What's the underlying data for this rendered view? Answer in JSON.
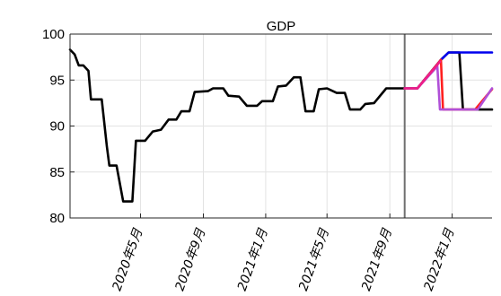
{
  "chart_data": {
    "type": "line",
    "title": "GDP",
    "xlabel": "",
    "ylabel": "",
    "ylim": [
      80,
      100
    ],
    "yticks": [
      80,
      85,
      90,
      95,
      100
    ],
    "xlim": [
      "2019-12-15",
      "2022-03-20"
    ],
    "xticks": [
      {
        "date": "2020-05-01",
        "label": "2020年5月"
      },
      {
        "date": "2020-09-01",
        "label": "2020年9月"
      },
      {
        "date": "2021-01-01",
        "label": "2021年1月"
      },
      {
        "date": "2021-05-01",
        "label": "2021年5月"
      },
      {
        "date": "2021-09-01",
        "label": "2021年9月"
      },
      {
        "date": "2022-01-01",
        "label": "2022年1月"
      }
    ],
    "grid": true,
    "vertical_marker": {
      "date": "2021-09-30",
      "color": "#707070"
    },
    "series": [
      {
        "color": "#000000",
        "points": [
          [
            "2019-12-15",
            98.3
          ],
          [
            "2019-12-24",
            97.8
          ],
          [
            "2020-01-01",
            96.6
          ],
          [
            "2020-01-10",
            96.6
          ],
          [
            "2020-01-20",
            96.0
          ],
          [
            "2020-01-25",
            92.9
          ],
          [
            "2020-02-05",
            92.9
          ],
          [
            "2020-02-15",
            92.9
          ],
          [
            "2020-02-25",
            87.8
          ],
          [
            "2020-03-01",
            85.7
          ],
          [
            "2020-03-15",
            85.7
          ],
          [
            "2020-03-28",
            81.8
          ],
          [
            "2020-04-15",
            81.8
          ],
          [
            "2020-04-22",
            88.4
          ],
          [
            "2020-05-10",
            88.4
          ],
          [
            "2020-05-25",
            89.4
          ],
          [
            "2020-06-10",
            89.6
          ],
          [
            "2020-06-25",
            90.7
          ],
          [
            "2020-07-10",
            90.7
          ],
          [
            "2020-07-20",
            91.6
          ],
          [
            "2020-08-05",
            91.6
          ],
          [
            "2020-08-15",
            93.7
          ],
          [
            "2020-09-10",
            93.8
          ],
          [
            "2020-09-20",
            94.1
          ],
          [
            "2020-10-10",
            94.1
          ],
          [
            "2020-10-20",
            93.3
          ],
          [
            "2020-11-10",
            93.2
          ],
          [
            "2020-11-25",
            92.2
          ],
          [
            "2020-12-15",
            92.2
          ],
          [
            "2020-12-25",
            92.7
          ],
          [
            "2021-01-15",
            92.7
          ],
          [
            "2021-01-25",
            94.3
          ],
          [
            "2021-02-10",
            94.4
          ],
          [
            "2021-02-25",
            95.3
          ],
          [
            "2021-03-10",
            95.3
          ],
          [
            "2021-03-20",
            91.6
          ],
          [
            "2021-04-05",
            91.6
          ],
          [
            "2021-04-15",
            94.0
          ],
          [
            "2021-05-01",
            94.1
          ],
          [
            "2021-05-20",
            93.6
          ],
          [
            "2021-06-05",
            93.6
          ],
          [
            "2021-06-15",
            91.8
          ],
          [
            "2021-07-05",
            91.8
          ],
          [
            "2021-07-15",
            92.4
          ],
          [
            "2021-08-01",
            92.5
          ],
          [
            "2021-08-25",
            94.1
          ],
          [
            "2021-09-30",
            94.1
          ]
        ]
      },
      {
        "color": "#000000",
        "points": [
          [
            "2021-09-30",
            94.1
          ],
          [
            "2021-10-25",
            94.1
          ],
          [
            "2021-12-10",
            97.2
          ],
          [
            "2021-12-25",
            98.0
          ],
          [
            "2022-01-15",
            98.0
          ],
          [
            "2022-01-22",
            91.8
          ],
          [
            "2022-03-20",
            91.8
          ]
        ]
      },
      {
        "color": "#0000ee",
        "points": [
          [
            "2021-09-30",
            94.1
          ],
          [
            "2021-10-25",
            94.1
          ],
          [
            "2021-12-10",
            97.2
          ],
          [
            "2021-12-25",
            98.0
          ],
          [
            "2022-03-20",
            98.0
          ]
        ]
      },
      {
        "color": "#ff1f1f",
        "points": [
          [
            "2021-09-30",
            94.1
          ],
          [
            "2021-10-25",
            94.1
          ],
          [
            "2021-12-10",
            97.2
          ],
          [
            "2021-12-14",
            91.8
          ],
          [
            "2022-02-15",
            91.8
          ],
          [
            "2022-03-20",
            94.0
          ]
        ]
      },
      {
        "color": "#b050d8",
        "points": [
          [
            "2021-09-30",
            94.1
          ],
          [
            "2021-10-25",
            94.1
          ],
          [
            "2021-12-03",
            96.5
          ],
          [
            "2021-12-08",
            91.8
          ],
          [
            "2022-02-20",
            91.8
          ],
          [
            "2022-03-20",
            94.1
          ]
        ]
      },
      {
        "color": "#ee1f88",
        "points": [
          [
            "2021-09-30",
            94.1
          ],
          [
            "2021-10-25",
            94.1
          ],
          [
            "2021-12-08",
            97.0
          ]
        ]
      }
    ]
  }
}
